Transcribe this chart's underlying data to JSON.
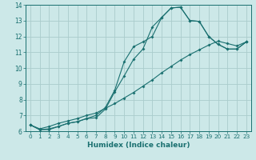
{
  "xlabel": "Humidex (Indice chaleur)",
  "bg_color": "#cce8e8",
  "grid_color": "#aacccc",
  "line_color": "#1a7070",
  "xlim": [
    -0.5,
    23.5
  ],
  "ylim": [
    6,
    14
  ],
  "xticks": [
    0,
    1,
    2,
    3,
    4,
    5,
    6,
    7,
    8,
    9,
    10,
    11,
    12,
    13,
    14,
    15,
    16,
    17,
    18,
    19,
    20,
    21,
    22,
    23
  ],
  "yticks": [
    6,
    7,
    8,
    9,
    10,
    11,
    12,
    13,
    14
  ],
  "line1_x": [
    0,
    1,
    2,
    3,
    4,
    5,
    6,
    7,
    8,
    9,
    10,
    11,
    12,
    13,
    14,
    15,
    16,
    17,
    18,
    19,
    20,
    21,
    22,
    23
  ],
  "line1_y": [
    6.4,
    6.1,
    6.1,
    6.3,
    6.5,
    6.6,
    6.8,
    7.0,
    7.5,
    8.6,
    10.4,
    11.35,
    11.65,
    12.0,
    13.2,
    13.8,
    13.85,
    13.0,
    12.95,
    12.0,
    11.5,
    11.2,
    11.2,
    11.65
  ],
  "line2_x": [
    0,
    1,
    2,
    3,
    4,
    5,
    6,
    7,
    8,
    9,
    10,
    11,
    12,
    13,
    14,
    15,
    16,
    17,
    18,
    19,
    20,
    21,
    22,
    23
  ],
  "line2_y": [
    6.4,
    6.1,
    6.15,
    6.3,
    6.5,
    6.6,
    6.8,
    6.85,
    7.4,
    8.5,
    9.5,
    10.55,
    11.2,
    12.6,
    13.2,
    13.8,
    13.85,
    13.0,
    12.95,
    12.0,
    11.5,
    11.2,
    11.2,
    11.65
  ],
  "line3_x": [
    0,
    1,
    2,
    3,
    4,
    5,
    6,
    7,
    8,
    9,
    10,
    11,
    12,
    13,
    14,
    15,
    16,
    17,
    18,
    19,
    20,
    21,
    22,
    23
  ],
  "line3_y": [
    6.4,
    6.15,
    6.3,
    6.5,
    6.65,
    6.8,
    7.0,
    7.15,
    7.45,
    7.75,
    8.1,
    8.45,
    8.85,
    9.25,
    9.7,
    10.1,
    10.5,
    10.85,
    11.15,
    11.45,
    11.7,
    11.55,
    11.4,
    11.65
  ]
}
